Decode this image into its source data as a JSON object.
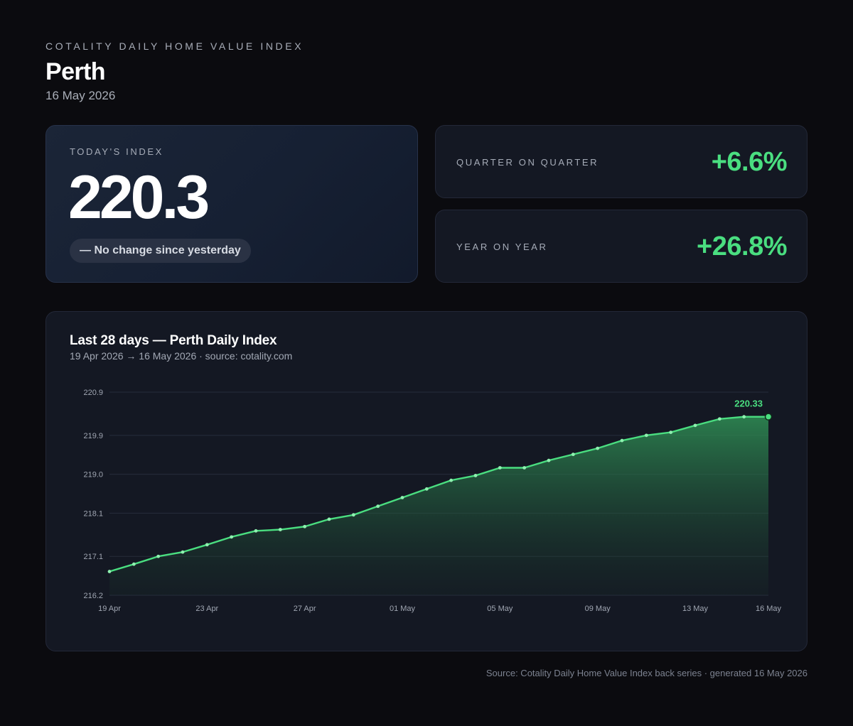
{
  "header": {
    "eyebrow": "COTALITY DAILY HOME VALUE INDEX",
    "city": "Perth",
    "date": "16 May 2026"
  },
  "today": {
    "label": "TODAY'S INDEX",
    "value": "220.3",
    "change": "— No change since yesterday"
  },
  "stats": {
    "qoq_label": "QUARTER ON QUARTER",
    "qoq_value": "+6.6%",
    "yoy_label": "YEAR ON YEAR",
    "yoy_value": "+26.8%"
  },
  "chart_panel": {
    "title": "Last 28 days — Perth Daily Index",
    "subtitle": "19 Apr 2026 → 16 May 2026 · source: cotality.com"
  },
  "footer": "Source: Cotality Daily Home Value Index back series · generated 16 May 2026",
  "colors": {
    "accent": "#4ade80",
    "background": "#0b0b0f",
    "card": "#141823"
  },
  "chart_data": {
    "type": "area",
    "x": [
      "19 Apr",
      "20 Apr",
      "21 Apr",
      "22 Apr",
      "23 Apr",
      "24 Apr",
      "25 Apr",
      "26 Apr",
      "27 Apr",
      "28 Apr",
      "29 Apr",
      "30 Apr",
      "01 May",
      "02 May",
      "03 May",
      "04 May",
      "05 May",
      "06 May",
      "07 May",
      "08 May",
      "09 May",
      "10 May",
      "11 May",
      "12 May",
      "13 May",
      "14 May",
      "15 May",
      "16 May"
    ],
    "values": [
      216.75,
      216.92,
      217.1,
      217.2,
      217.37,
      217.55,
      217.69,
      217.72,
      217.79,
      217.96,
      218.06,
      218.26,
      218.46,
      218.66,
      218.86,
      218.97,
      219.15,
      219.15,
      219.32,
      219.46,
      219.6,
      219.78,
      219.9,
      219.97,
      220.13,
      220.28,
      220.33,
      220.33
    ],
    "y_ticks": [
      "220.9",
      "219.9",
      "219.0",
      "218.1",
      "217.1",
      "216.2"
    ],
    "x_ticks": [
      "19 Apr",
      "23 Apr",
      "27 Apr",
      "01 May",
      "05 May",
      "09 May",
      "13 May",
      "16 May"
    ],
    "ylim": [
      216.2,
      220.9
    ],
    "last_label": "220.33",
    "grid": true
  }
}
